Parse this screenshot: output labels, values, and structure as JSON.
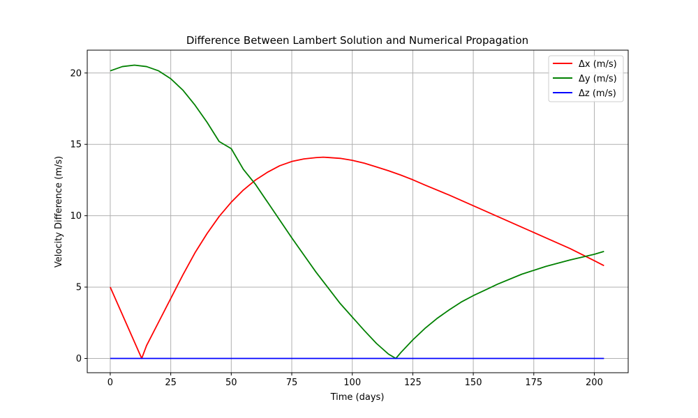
{
  "chart_data": {
    "type": "line",
    "title": "Difference Between Lambert Solution and Numerical Propagation",
    "xlabel": "Time (days)",
    "ylabel": "Velocity Difference (m/s)",
    "xlim": [
      -9.5,
      214
    ],
    "ylim": [
      -1.0,
      21.6
    ],
    "xticks": [
      0,
      25,
      50,
      75,
      100,
      125,
      150,
      175,
      200
    ],
    "yticks": [
      0,
      5,
      10,
      15,
      20
    ],
    "grid": true,
    "legend_position": "top-right",
    "series": [
      {
        "name": "Δx (m/s)",
        "color": "#ff0000",
        "x": [
          0,
          13,
          15,
          20,
          25,
          30,
          35,
          40,
          45,
          50,
          55,
          60,
          65,
          70,
          75,
          80,
          85,
          88,
          90,
          95,
          100,
          105,
          110,
          115,
          120,
          125,
          130,
          140,
          150,
          160,
          170,
          180,
          190,
          200,
          204
        ],
        "y": [
          5.0,
          0.0,
          0.9,
          2.55,
          4.2,
          5.85,
          7.4,
          8.75,
          9.95,
          10.95,
          11.8,
          12.5,
          13.05,
          13.5,
          13.8,
          13.98,
          14.07,
          14.1,
          14.08,
          14.02,
          13.88,
          13.68,
          13.42,
          13.15,
          12.85,
          12.52,
          12.15,
          11.45,
          10.7,
          9.95,
          9.2,
          8.45,
          7.7,
          6.85,
          6.5
        ]
      },
      {
        "name": "Δy (m/s)",
        "color": "#008000",
        "x": [
          0,
          5,
          10,
          15,
          20,
          25,
          30,
          35,
          40,
          45,
          50,
          55,
          60,
          65,
          70,
          75,
          80,
          85,
          90,
          95,
          100,
          105,
          110,
          115,
          118,
          120,
          125,
          130,
          135,
          140,
          145,
          150,
          155,
          160,
          170,
          180,
          190,
          200,
          204
        ],
        "y": [
          20.15,
          20.45,
          20.55,
          20.45,
          20.15,
          19.6,
          18.8,
          17.75,
          16.55,
          15.2,
          14.7,
          13.25,
          12.2,
          10.95,
          9.7,
          8.45,
          7.25,
          6.05,
          4.95,
          3.85,
          2.9,
          1.95,
          1.05,
          0.3,
          0.0,
          0.4,
          1.3,
          2.1,
          2.8,
          3.4,
          3.95,
          4.4,
          4.8,
          5.2,
          5.9,
          6.45,
          6.9,
          7.3,
          7.5
        ]
      },
      {
        "name": "Δz (m/s)",
        "color": "#0000ff",
        "x": [
          0,
          204
        ],
        "y": [
          0,
          0
        ]
      }
    ]
  }
}
